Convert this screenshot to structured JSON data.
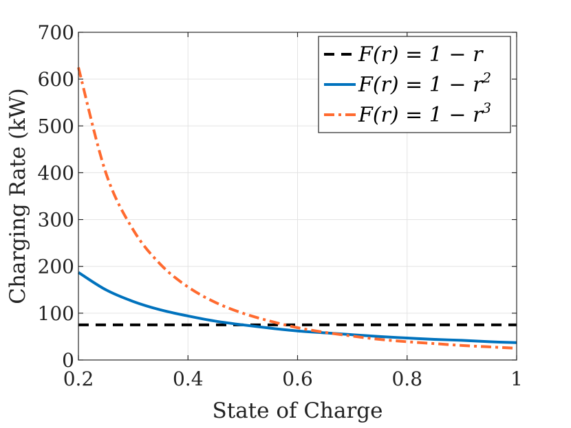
{
  "chart_data": {
    "type": "line",
    "title": "",
    "xlabel": "State of Charge",
    "ylabel": "Charging Rate (kW)",
    "xlim": [
      0.2,
      1
    ],
    "ylim": [
      0,
      700
    ],
    "xticks": [
      0.2,
      0.4,
      0.6,
      0.8,
      1
    ],
    "xtick_labels": [
      "0.2",
      "0.4",
      "0.6",
      "0.8",
      "1"
    ],
    "yticks": [
      0,
      100,
      200,
      300,
      400,
      500,
      600,
      700
    ],
    "ytick_labels": [
      "0",
      "100",
      "200",
      "300",
      "400",
      "500",
      "600",
      "700"
    ],
    "grid": true,
    "legend_position": "top-right",
    "x": [
      0.2,
      0.25,
      0.3,
      0.35,
      0.4,
      0.45,
      0.5,
      0.55,
      0.6,
      0.65,
      0.7,
      0.75,
      0.8,
      0.85,
      0.9,
      0.95,
      1.0
    ],
    "series": [
      {
        "name": "F(r) = 1 − r",
        "legend_base": "F(r) = 1 − r",
        "legend_exp": "",
        "color": "#000000",
        "style": "dashed",
        "values": [
          75,
          75,
          75,
          75,
          75,
          75,
          75,
          75,
          75,
          75,
          75,
          75,
          75,
          75,
          75,
          75,
          75
        ]
      },
      {
        "name": "F(r) = 1 − r²",
        "legend_base": "F(r) = 1 − r",
        "legend_exp": "2",
        "color": "#0072bd",
        "style": "solid",
        "values": [
          187,
          150,
          125,
          107,
          94,
          83,
          75,
          68,
          62,
          58,
          54,
          50,
          47,
          44,
          42,
          39,
          37
        ]
      },
      {
        "name": "F(r) = 1 − r³",
        "legend_base": "F(r) = 1 − r",
        "legend_exp": "3",
        "color": "#ff6a2f",
        "style": "dashdot",
        "values": [
          625,
          400,
          278,
          204,
          156,
          123,
          100,
          83,
          69,
          59,
          51,
          44,
          39,
          35,
          31,
          28,
          25
        ]
      }
    ]
  }
}
